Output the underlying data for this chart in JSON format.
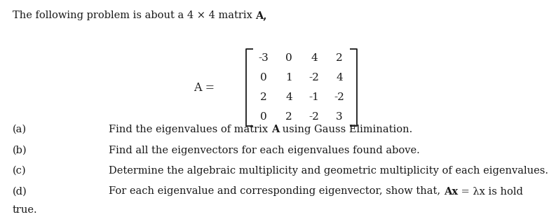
{
  "bg_color": "#ffffff",
  "text_color": "#1a1a1a",
  "font_size": 10.5,
  "matrix_font_size": 11,
  "serif_font": "DejaVu Serif",
  "title_normal": "The following problem is about a 4 × 4 matrix ",
  "title_bold_part": "A,",
  "matrix_rows": [
    [
      "-3",
      "0",
      "4",
      "2"
    ],
    [
      "0",
      "1",
      "-2",
      "4"
    ],
    [
      "2",
      "4",
      "-1",
      "-2"
    ],
    [
      "0",
      "2",
      "-2",
      "3"
    ]
  ],
  "part_a_pre": "Find the eigenvalues of matrix ",
  "part_a_bold": "A",
  "part_a_post": " using Gauss Elimination.",
  "part_b": "Find all the eigenvectors for each eigenvalues found above.",
  "part_c": "Determine the algebraic multiplicity and geometric multiplicity of each eigenvalues.",
  "part_d_pre": "For each eigenvalue and corresponding eigenvector, show that, ",
  "part_d_bold": "Ax",
  "part_d_post": " = λx is hold",
  "last_line": "true."
}
